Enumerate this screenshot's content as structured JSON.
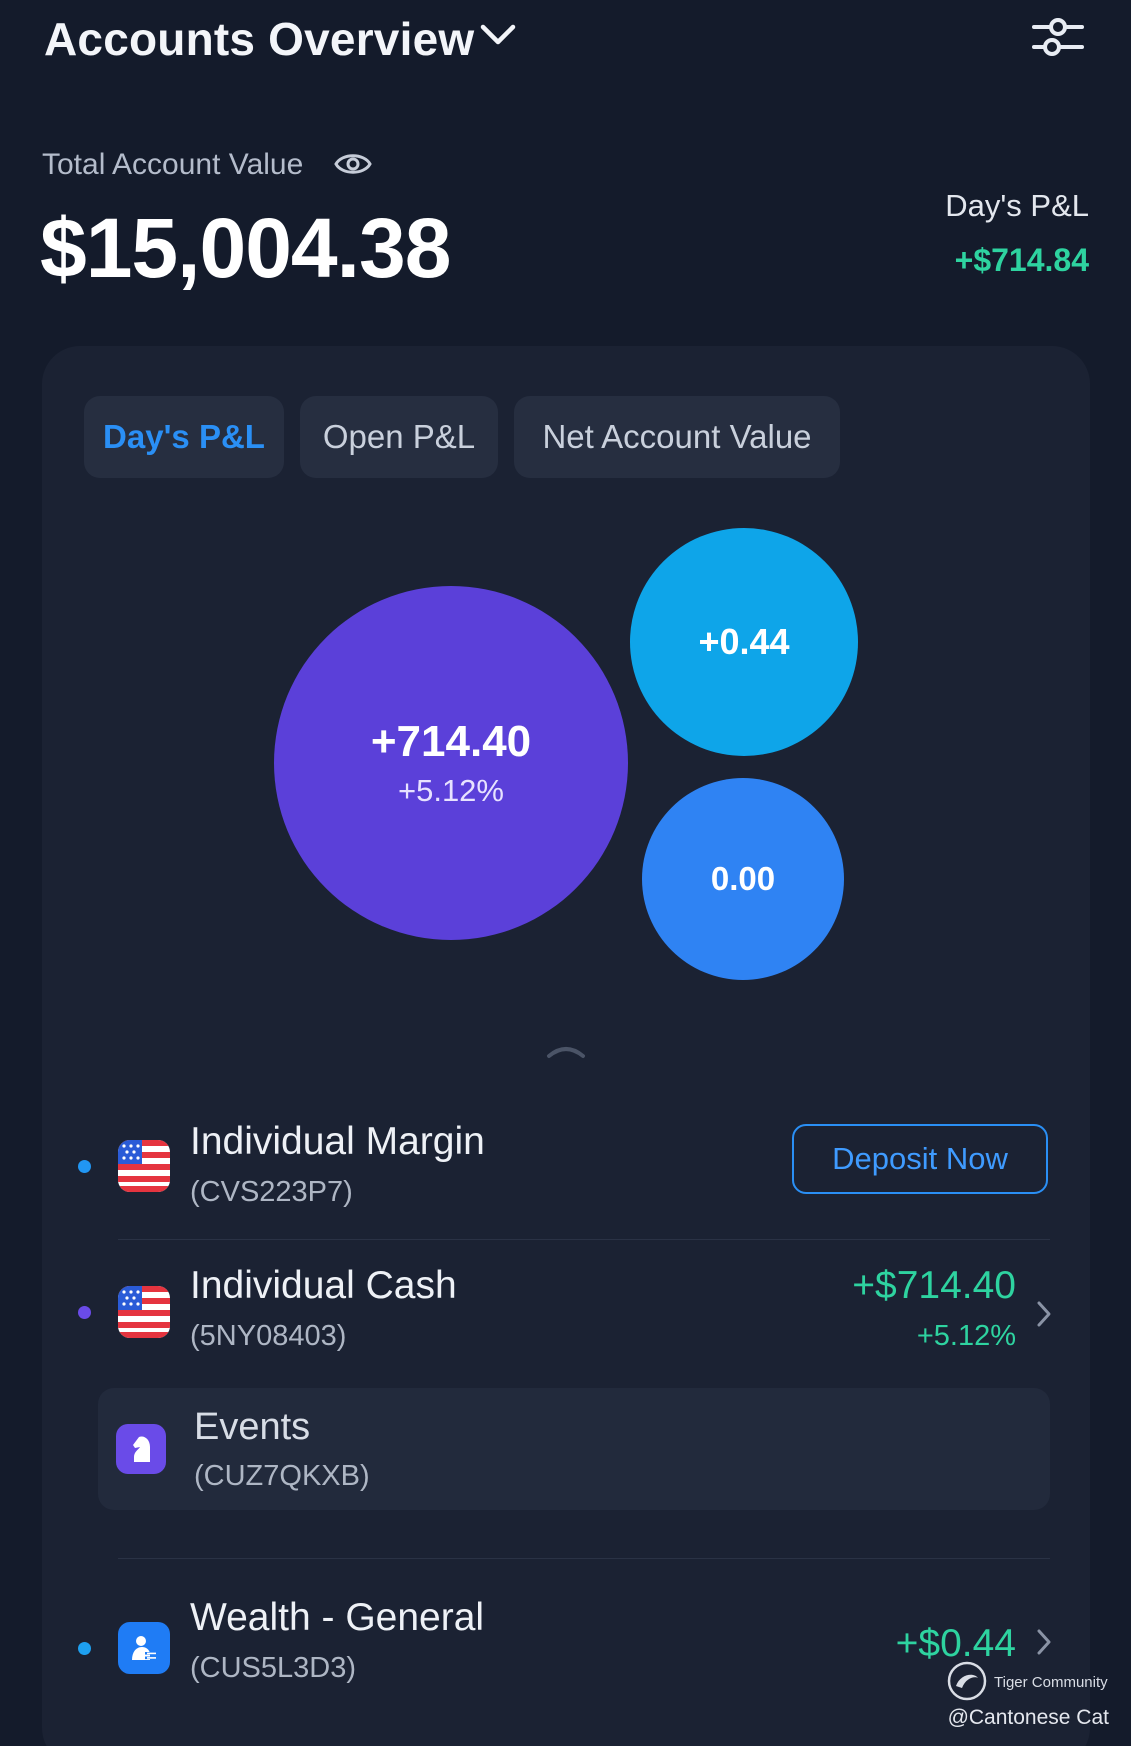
{
  "header": {
    "title": "Accounts Overview"
  },
  "summary": {
    "total_label": "Total Account Value",
    "total_value": "$15,004.38",
    "day_pl_label": "Day's P&L",
    "day_pl_value": "+$714.84"
  },
  "tabs": [
    {
      "label": "Day's P&L",
      "active": true
    },
    {
      "label": "Open P&L",
      "active": false
    },
    {
      "label": "Net Account Value",
      "active": false
    }
  ],
  "bubbles": [
    {
      "value": "+714.40",
      "pct": "+5.12%",
      "color": "#5b40d9"
    },
    {
      "value": "+0.44",
      "color": "#0ea5e9"
    },
    {
      "value": "0.00",
      "color": "#2f83f3"
    }
  ],
  "accounts": [
    {
      "name": "Individual Margin",
      "id": "(CVS223P7)",
      "action": "Deposit Now",
      "dot_color": "#2196f3"
    },
    {
      "name": "Individual Cash",
      "id": "(5NY08403)",
      "amount": "+$714.40",
      "pct": "+5.12%",
      "dot_color": "#6a4be8"
    },
    {
      "name": "Events",
      "id": "(CUZ7QKXB)"
    },
    {
      "name": "Wealth - General",
      "id": "(CUS5L3D3)",
      "amount": "+$0.44",
      "dot_color": "#1ea0f0"
    }
  ],
  "watermark": {
    "brand": "Tiger Community",
    "handle": "@Cantonese Cat"
  },
  "colors": {
    "background": "#141b2b",
    "card": "#1b2233",
    "positive": "#2ed3a0",
    "accent": "#2a8ff5"
  }
}
